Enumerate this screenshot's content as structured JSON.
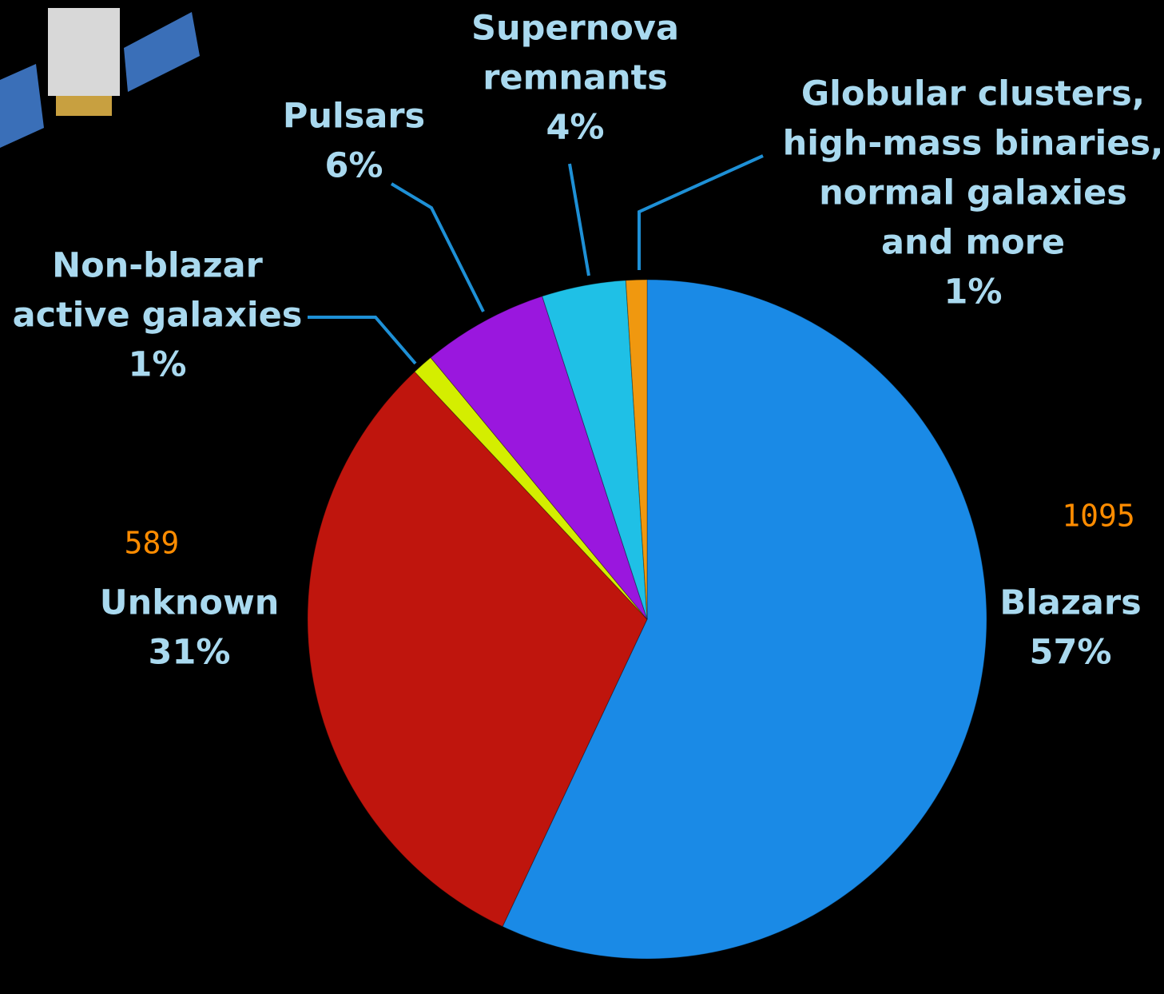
{
  "chart_data": {
    "type": "pie",
    "categories": [
      [
        "Blazars"
      ],
      [
        "Unknown"
      ],
      [
        "Non-blazar",
        "active galaxies"
      ],
      [
        "Pulsars"
      ],
      [
        "Supernova",
        "remnants"
      ],
      [
        "Globular clusters,",
        "high-mass binaries,",
        "normal galaxies",
        "and more"
      ]
    ],
    "values": [
      57,
      31,
      1,
      6,
      4,
      1
    ],
    "value_labels": [
      "57%",
      "31%",
      "1%",
      "6%",
      "4%",
      "1%"
    ],
    "colors": [
      "#1a8ae6",
      "#bf150d",
      "#d4ee00",
      "#9a17de",
      "#1fc0e6",
      "#f0980f"
    ],
    "annotations": [
      "1095",
      "589"
    ]
  }
}
